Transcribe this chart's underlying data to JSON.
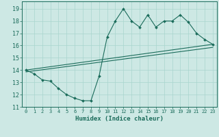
{
  "line1_x": [
    0,
    1,
    2,
    3,
    4,
    5,
    6,
    7,
    8,
    9,
    10,
    11,
    12,
    13,
    14,
    15,
    16,
    17,
    18,
    19,
    20,
    21,
    22,
    23
  ],
  "line1_y": [
    14.0,
    13.7,
    13.2,
    13.1,
    12.5,
    12.0,
    11.7,
    11.5,
    11.5,
    13.5,
    16.7,
    18.0,
    19.0,
    18.0,
    17.5,
    18.5,
    17.5,
    18.0,
    18.0,
    18.5,
    17.9,
    17.0,
    16.5,
    16.1
  ],
  "line2_x": [
    0,
    23
  ],
  "line2_y": [
    14.0,
    16.1
  ],
  "line3_x": [
    0,
    23
  ],
  "line3_y": [
    13.85,
    15.85
  ],
  "line_color": "#1a6b5a",
  "bg_color": "#cde8e4",
  "grid_color": "#a8d4ce",
  "xlabel": "Humidex (Indice chaleur)",
  "xlim": [
    -0.5,
    23.5
  ],
  "ylim": [
    11,
    19.6
  ],
  "yticks": [
    11,
    12,
    13,
    14,
    15,
    16,
    17,
    18,
    19
  ],
  "xticks": [
    0,
    1,
    2,
    3,
    4,
    5,
    6,
    7,
    8,
    9,
    10,
    11,
    12,
    13,
    14,
    15,
    16,
    17,
    18,
    19,
    20,
    21,
    22,
    23
  ],
  "xlabel_fontsize": 6.5,
  "xtick_fontsize": 5.0,
  "ytick_fontsize": 6.0
}
